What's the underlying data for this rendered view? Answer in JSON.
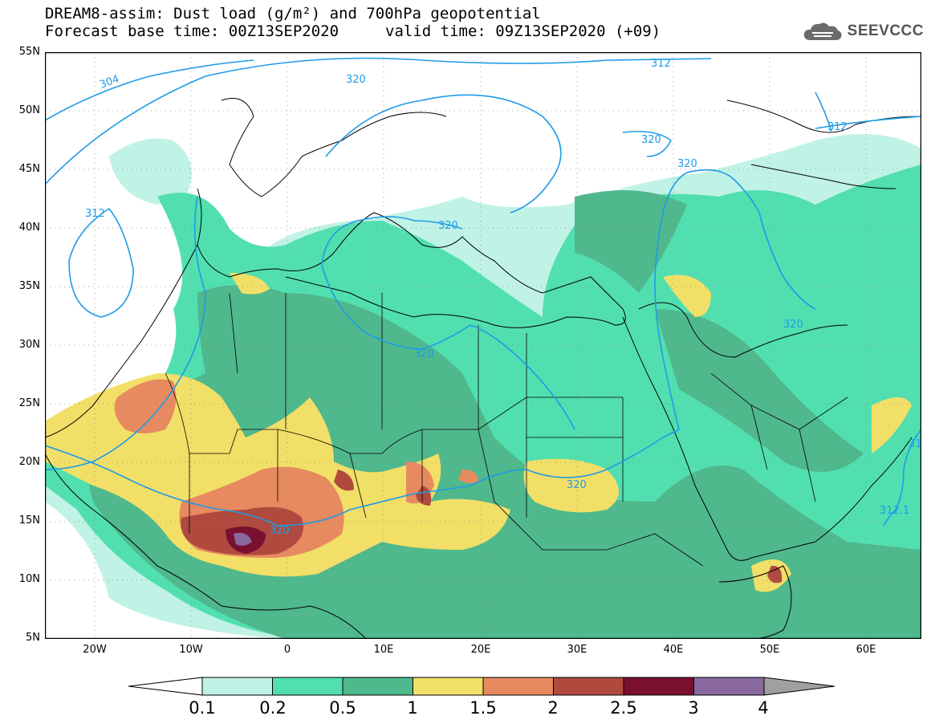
{
  "header": {
    "title_line1": "DREAM8-assim: Dust load (g/m²) and 700hPa geopotential",
    "title_line2a": "Forecast base time: 00Z13SEP2020",
    "title_line2b": "valid time: 09Z13SEP2020 (+09)",
    "logo_text": "SEEVCCC"
  },
  "axes": {
    "lat_labels": [
      "55N",
      "50N",
      "45N",
      "40N",
      "35N",
      "30N",
      "25N",
      "20N",
      "15N",
      "10N",
      "5N"
    ],
    "lon_labels": [
      "20W",
      "10W",
      "0",
      "10E",
      "20E",
      "30E",
      "40E",
      "50E",
      "60E"
    ]
  },
  "contours": {
    "labels": [
      "304",
      "312",
      "320",
      "320",
      "320",
      "320",
      "320",
      "312",
      "320",
      "320",
      "312",
      "320",
      "312.1",
      "31"
    ]
  },
  "colorbar": {
    "levels": [
      "0.1",
      "0.2",
      "0.5",
      "1",
      "1.5",
      "2",
      "2.5",
      "3",
      "4"
    ],
    "colors": [
      "#c0f2e6",
      "#52dfb0",
      "#4fb88c",
      "#f2df68",
      "#e78a60",
      "#b04a3e",
      "#7a1030",
      "#8a68a0",
      "#a0a0a0"
    ]
  },
  "colors": {
    "level1": "#c0f2e6",
    "level2": "#52dfb0",
    "level3": "#4fb88c",
    "level4": "#f2df68",
    "level5": "#e78a60",
    "level6": "#b04a3e",
    "level7": "#7a1030",
    "level8": "#8a68a0",
    "contour": "#1e9be8"
  }
}
